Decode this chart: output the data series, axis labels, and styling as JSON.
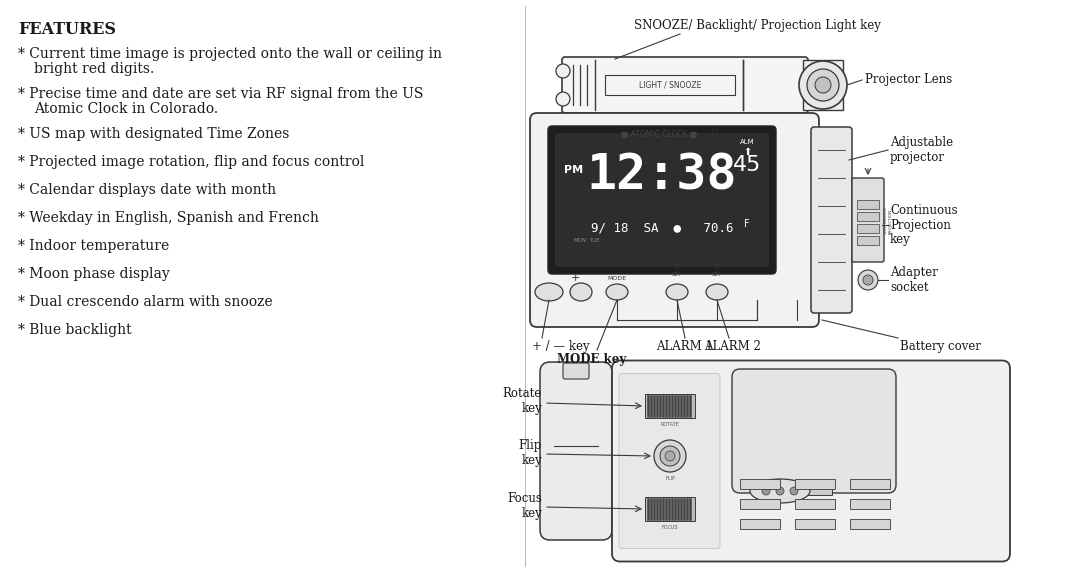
{
  "bg_color": "#ffffff",
  "left_panel": {
    "title": "FEATURES",
    "items": [
      [
        "Current time image is projected onto the wall or ceiling in",
        "bright red digits."
      ],
      [
        "Precise time and date are set via RF signal from the US",
        "Atomic Clock in Colorado."
      ],
      [
        "US map with designated Time Zones"
      ],
      [
        "Projected image rotation, flip and focus control"
      ],
      [
        "Calendar displays date with month"
      ],
      [
        "Weekday in English, Spanish and French"
      ],
      [
        "Indoor temperature"
      ],
      [
        "Moon phase display"
      ],
      [
        "Dual crescendo alarm with snooze"
      ],
      [
        "Blue backlight"
      ]
    ],
    "font_size": 10.0,
    "title_font_size": 11.5
  },
  "text_color": "#1a1a1a",
  "line_color": "#3a3a3a",
  "label_snooze": "SNOOZE/ Backlight/ Projection Light key",
  "label_lens": "Projector Lens",
  "label_adj": "Adjustable\nprojector",
  "label_cont": "Continuous\nProjection\nkey",
  "label_adapter": "Adapter\nsocket",
  "label_plus_minus": "+ / — key",
  "label_mode": "MODE key",
  "label_alarm1": "ALARM 1",
  "label_alarm2": "ALARM 2",
  "label_battery": "Battery cover",
  "label_rotate": "Rotate\nkey",
  "label_flip": "Flip\nkey",
  "label_focus": "Focus\nkey"
}
